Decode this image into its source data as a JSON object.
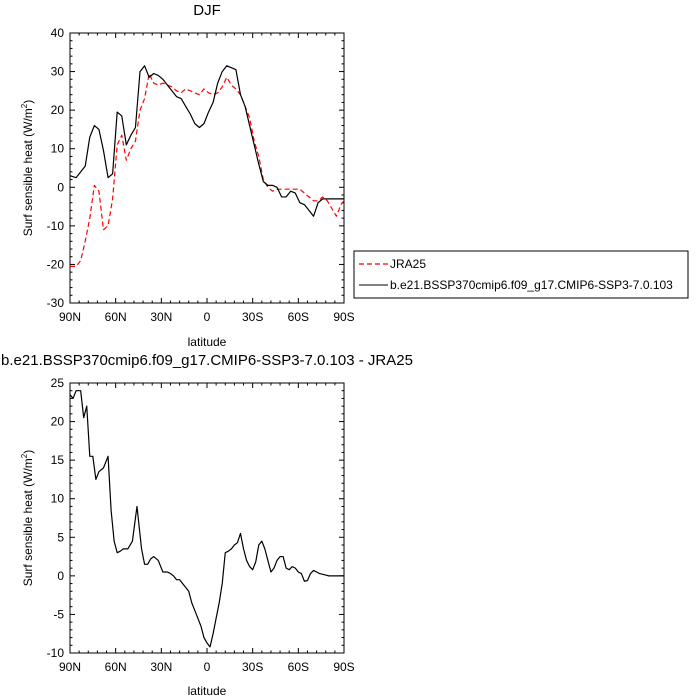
{
  "chart_data": [
    {
      "type": "line",
      "title": "DJF",
      "xlabel": "latitude",
      "ylabel": "Surf sensible heat (W/m²)",
      "ylabel_main": "Surf sensible heat (W/m",
      "ylabel_sup": "2",
      "ylabel_end": ")",
      "xlim": [
        90,
        -90
      ],
      "ylim": [
        -30,
        40
      ],
      "x_ticks": [
        90,
        60,
        30,
        0,
        -30,
        -60,
        -90
      ],
      "x_tick_labels": [
        "90N",
        "60N",
        "30N",
        "0",
        "30S",
        "60S",
        "90S"
      ],
      "y_ticks": [
        -30,
        -20,
        -10,
        0,
        10,
        20,
        30,
        40
      ],
      "y_tick_labels": [
        "-30",
        "-20",
        "-10",
        "0",
        "10",
        "20",
        "30",
        "40"
      ],
      "legend_placement": "right",
      "series": [
        {
          "name": "JRA25",
          "color": "#ff0000",
          "dash": "dashed",
          "x": [
            90,
            86,
            83,
            80,
            77,
            74,
            71,
            68,
            65,
            62,
            59,
            56,
            53,
            50,
            47,
            44,
            41,
            38,
            35,
            32,
            29,
            26,
            23,
            20,
            17,
            14,
            11,
            8,
            5,
            2,
            -1,
            -4,
            -7,
            -10,
            -13,
            -16,
            -19,
            -22,
            -25,
            -28,
            -31,
            -34,
            -37,
            -40,
            -43,
            -46,
            -49,
            -52,
            -55,
            -58,
            -61,
            -64,
            -67,
            -70,
            -73,
            -76,
            -79,
            -82,
            -85,
            -88,
            -90
          ],
          "y": [
            -20.5,
            -20.5,
            -19,
            -14,
            -8,
            0.5,
            -1,
            -11,
            -10,
            -3,
            11,
            13.5,
            7,
            10,
            12,
            20,
            23,
            29.5,
            27,
            26.5,
            27,
            26.5,
            26,
            25,
            24.5,
            25.5,
            25,
            24.5,
            24,
            25.5,
            24.5,
            24,
            24.5,
            26,
            28.5,
            26.5,
            25.5,
            24,
            21,
            18,
            12,
            8,
            2,
            0,
            -1,
            -0.5,
            -0.5,
            -0.5,
            -0.5,
            -0.5,
            -0.5,
            -1.5,
            -2.5,
            -3.5,
            -3.5,
            -2.5,
            -3.5,
            -5.5,
            -7.5,
            -4.5,
            -3.5
          ]
        },
        {
          "name": "b.e21.BSSP370cmip6.f09_g17.CMIP6-SSP3-7.0.103",
          "color": "#000000",
          "dash": "solid",
          "x": [
            90,
            86,
            83,
            80,
            77,
            74,
            71,
            68,
            65,
            62,
            59,
            56,
            53,
            50,
            47,
            44,
            41,
            38,
            35,
            32,
            29,
            26,
            23,
            20,
            17,
            14,
            11,
            8,
            5,
            2,
            -1,
            -4,
            -7,
            -10,
            -13,
            -16,
            -19,
            -22,
            -25,
            -28,
            -31,
            -34,
            -37,
            -40,
            -43,
            -46,
            -49,
            -52,
            -55,
            -58,
            -61,
            -64,
            -67,
            -70,
            -73,
            -76,
            -79,
            -82,
            -85,
            -88,
            -90
          ],
          "y": [
            3,
            2.5,
            4,
            5.5,
            13,
            16,
            15,
            9.5,
            2.5,
            3.5,
            19.5,
            18.5,
            11,
            13.5,
            15.5,
            30,
            31.5,
            28.5,
            29.5,
            29,
            28,
            26.5,
            25,
            23.5,
            23,
            21,
            19,
            16.5,
            15.5,
            16.5,
            19.5,
            22,
            27,
            30,
            31.5,
            31,
            30.5,
            24,
            21,
            16,
            11,
            6,
            1.5,
            0.5,
            0.5,
            0,
            -2.5,
            -2.5,
            -1,
            -1.5,
            -4,
            -4.5,
            -6,
            -7.5,
            -4,
            -3,
            -3,
            -3,
            -3,
            -3,
            -3
          ]
        }
      ]
    },
    {
      "type": "line",
      "title": "b.e21.BSSP370cmip6.f09_g17.CMIP6-SSP3-7.0.103 - JRA25",
      "xlabel": "latitude",
      "ylabel": "Surf sensible heat (W/m²)",
      "ylabel_main": "Surf sensible heat (W/m",
      "ylabel_sup": "2",
      "ylabel_end": ")",
      "xlim": [
        90,
        -90
      ],
      "ylim": [
        -10,
        25
      ],
      "x_ticks": [
        90,
        60,
        30,
        0,
        -30,
        -60,
        -90
      ],
      "x_tick_labels": [
        "90N",
        "60N",
        "30N",
        "0",
        "30S",
        "60S",
        "90S"
      ],
      "y_ticks": [
        -10,
        -5,
        0,
        5,
        10,
        15,
        20,
        25
      ],
      "y_tick_labels": [
        "-10",
        "-5",
        "0",
        "5",
        "10",
        "15",
        "20",
        "25"
      ],
      "series": [
        {
          "color": "#000000",
          "dash": "solid",
          "x": [
            90,
            88,
            86,
            83,
            81,
            79,
            77,
            75,
            73,
            71,
            68,
            65,
            63,
            61,
            59,
            57,
            55,
            52,
            49,
            46,
            43,
            41,
            39,
            37,
            35,
            32,
            29,
            26,
            24,
            22,
            20,
            18,
            16,
            14,
            12,
            10,
            8,
            6,
            4,
            2,
            0,
            -2,
            -4,
            -6,
            -8,
            -10,
            -12,
            -14,
            -16,
            -18,
            -20,
            -22,
            -24,
            -26,
            -28,
            -30,
            -32,
            -34,
            -36,
            -38,
            -40,
            -42,
            -44,
            -46,
            -48,
            -50,
            -52,
            -54,
            -56,
            -58,
            -60,
            -62,
            -64,
            -66,
            -68,
            -70,
            -72,
            -74,
            -76,
            -78,
            -80,
            -82,
            -84,
            -86,
            -88,
            -90
          ],
          "y": [
            23.5,
            23,
            24,
            24,
            20.5,
            22,
            15.5,
            15.5,
            12.5,
            13.5,
            14,
            15.5,
            8.5,
            4.5,
            3,
            3.2,
            3.5,
            3.5,
            4.5,
            9,
            3.5,
            1.5,
            1.5,
            2.2,
            2.5,
            2,
            0.5,
            0.5,
            0.3,
            0,
            -0.5,
            -0.5,
            -1,
            -1.5,
            -2,
            -3.5,
            -4.5,
            -5.5,
            -6.5,
            -8,
            -8.7,
            -9.2,
            -7.5,
            -5.5,
            -3.5,
            -1,
            3,
            3.2,
            3.5,
            4,
            4.3,
            5.5,
            3.5,
            2,
            1.2,
            0.8,
            1.8,
            4,
            4.5,
            3.5,
            2,
            0.5,
            1,
            2,
            2.5,
            2.5,
            1,
            0.8,
            1.2,
            1,
            0.5,
            0.3,
            -0.7,
            -0.6,
            0.3,
            0.7,
            0.5,
            0.3,
            0.2,
            0.1,
            0,
            0,
            0,
            0,
            0,
            0
          ]
        }
      ]
    }
  ]
}
